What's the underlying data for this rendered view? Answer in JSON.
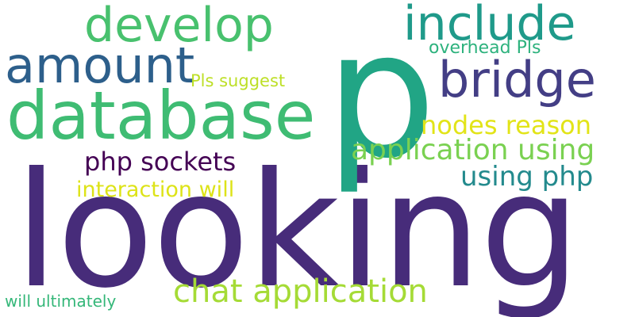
{
  "words": [
    {
      "id": "looking",
      "text": "looking",
      "color": "#472c7a"
    },
    {
      "id": "p",
      "text": "p",
      "color": "#21a585"
    },
    {
      "id": "database",
      "text": "database",
      "color": "#3fbc73"
    },
    {
      "id": "develop",
      "text": "develop",
      "color": "#48c16e"
    },
    {
      "id": "include",
      "text": "include",
      "color": "#1f9a8a"
    },
    {
      "id": "amount",
      "text": "amount",
      "color": "#2d5f8b"
    },
    {
      "id": "bridge",
      "text": "bridge",
      "color": "#433e85"
    },
    {
      "id": "chat-application",
      "text": "chat application",
      "color": "#a5db36"
    },
    {
      "id": "application-using",
      "text": "application using",
      "color": "#7ad151"
    },
    {
      "id": "nodes-reason",
      "text": "nodes reason",
      "color": "#e2e418"
    },
    {
      "id": "php-sockets",
      "text": "php sockets",
      "color": "#440154"
    },
    {
      "id": "using-php",
      "text": "using php",
      "color": "#238a8d"
    },
    {
      "id": "interaction-will",
      "text": "interaction will",
      "color": "#dde318"
    },
    {
      "id": "pls-suggest",
      "text": "Pls suggest",
      "color": "#bddf26"
    },
    {
      "id": "overhead-pls",
      "text": "overhead Pls",
      "color": "#2db27d"
    },
    {
      "id": "will-ultimately",
      "text": "will ultimately",
      "color": "#35b779"
    }
  ]
}
